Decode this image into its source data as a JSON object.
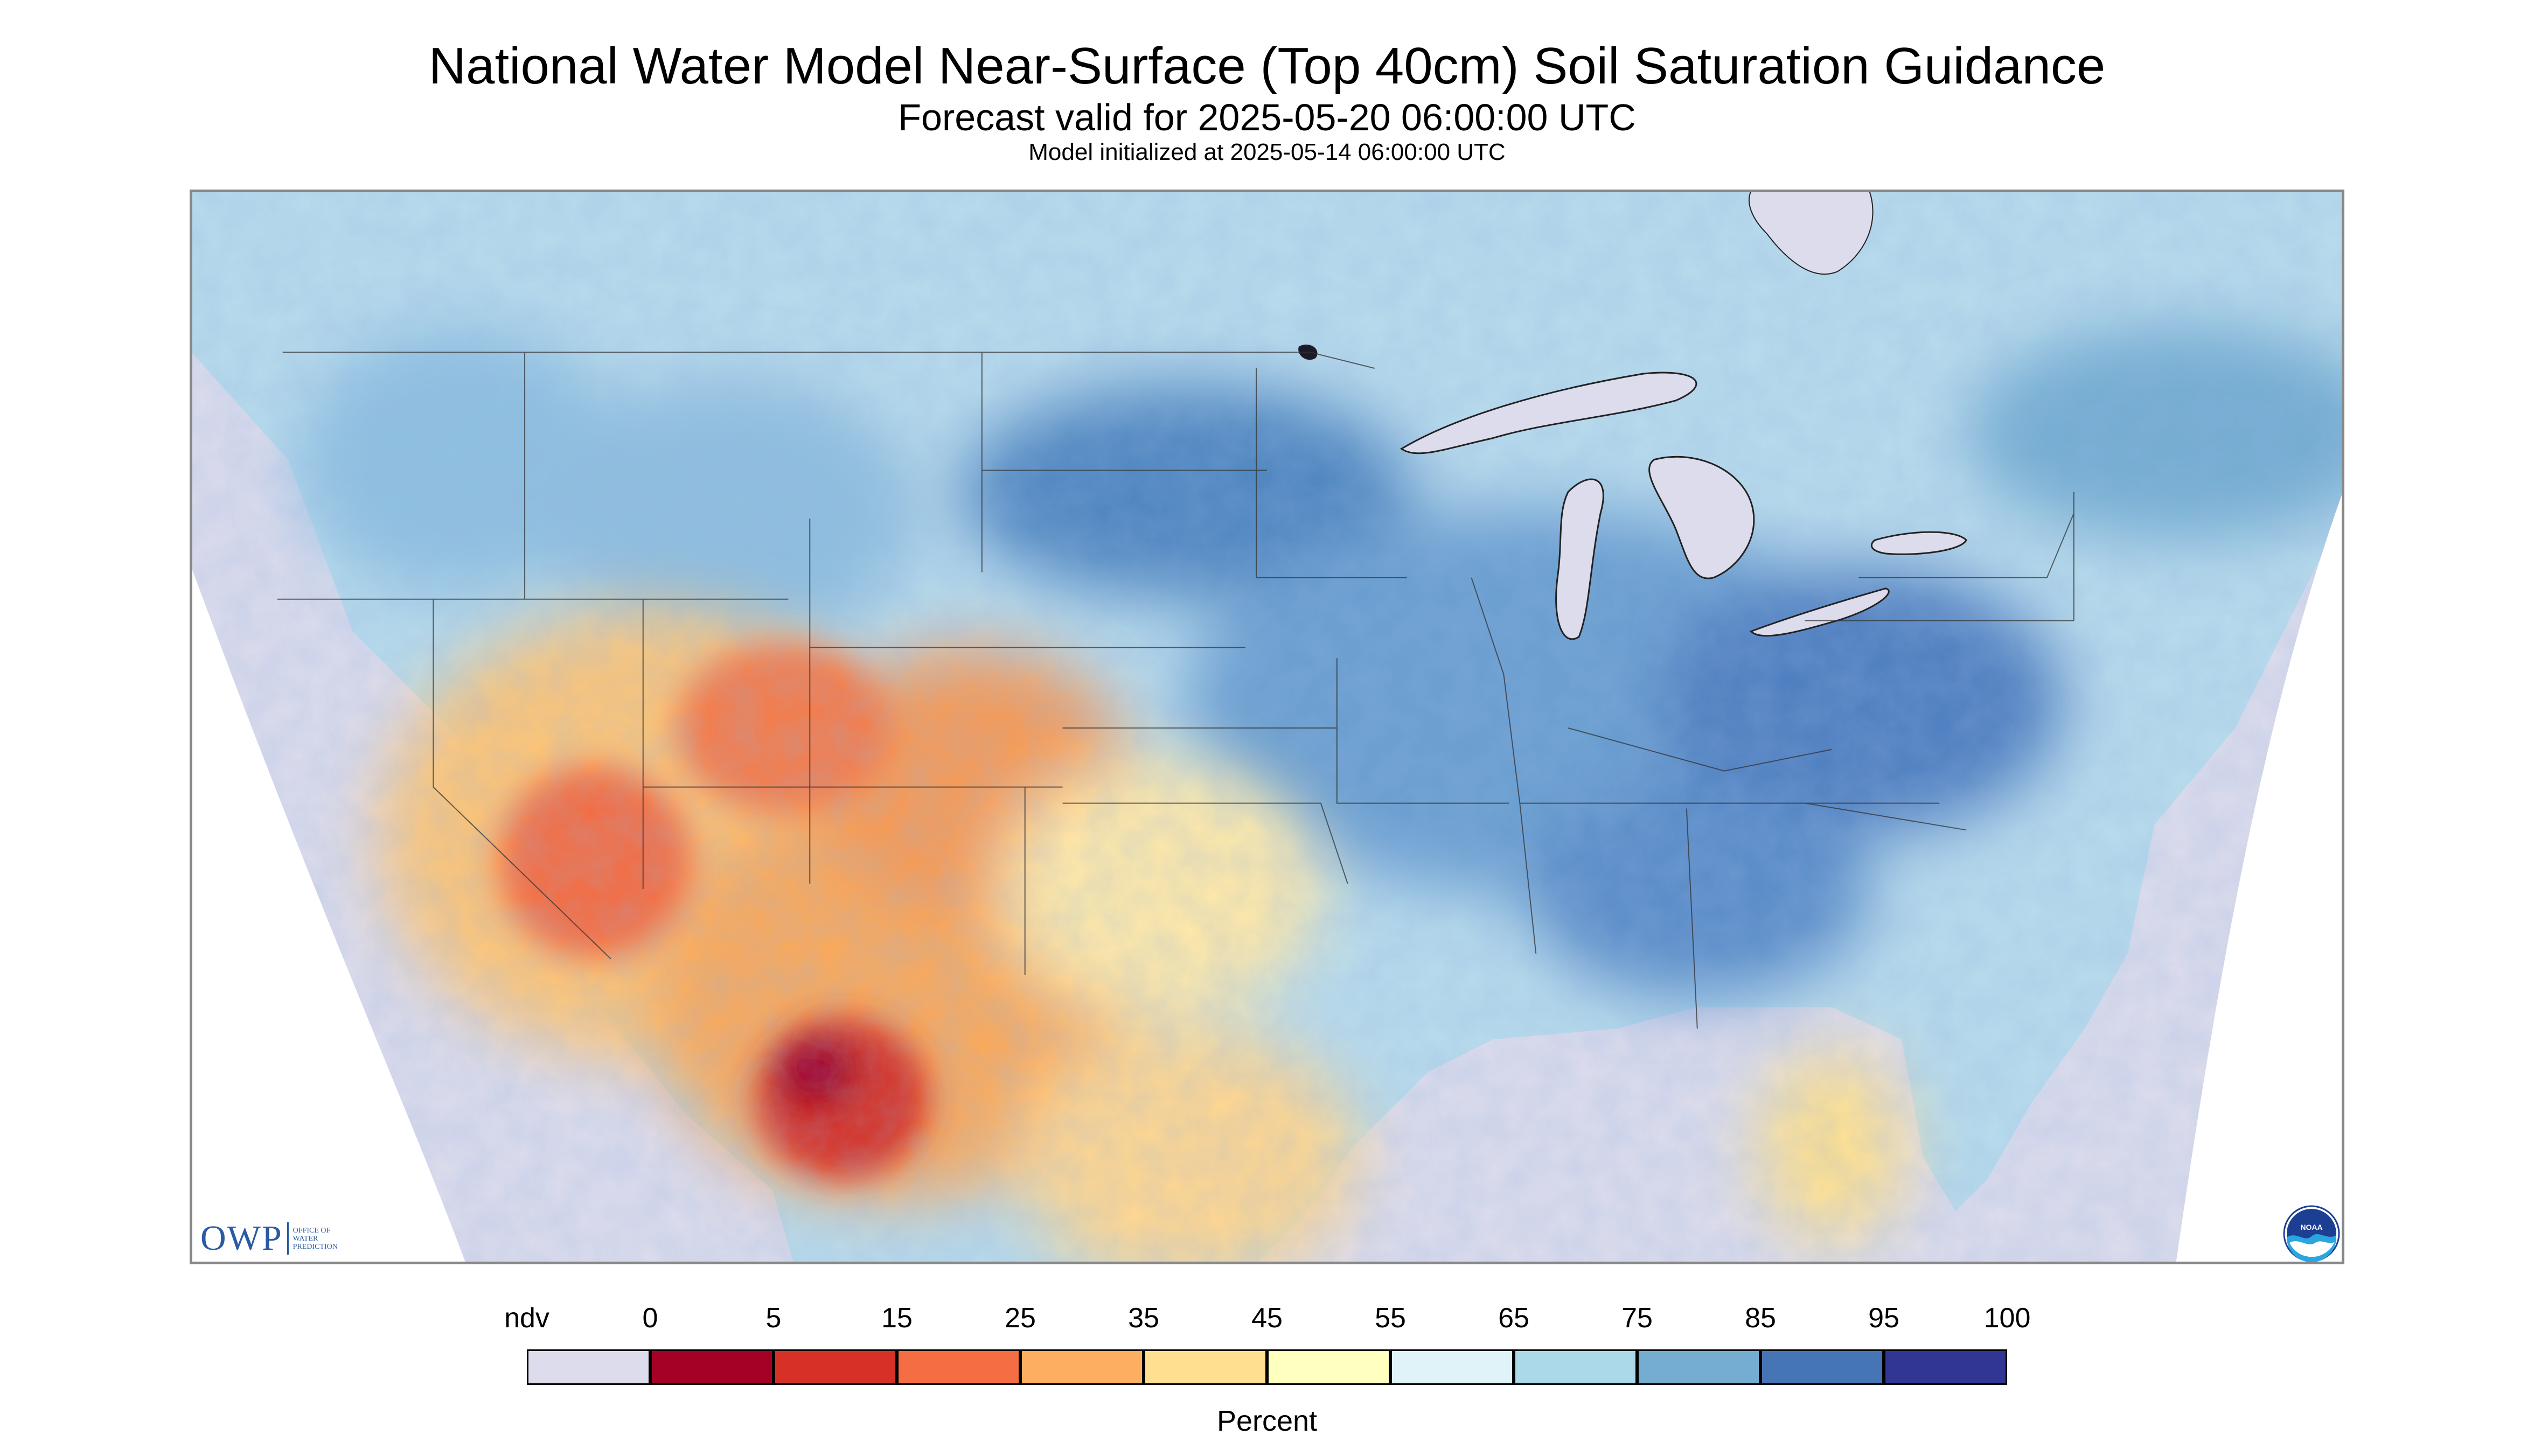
{
  "title": "National Water Model Near-Surface (Top 40cm) Soil Saturation Guidance",
  "subtitle": "Forecast valid for 2025-05-20 06:00:00 UTC",
  "init_line": "Model initialized at 2025-05-14 06:00:00 UTC",
  "logo_left": {
    "name": "OWP",
    "sub": [
      "OFFICE OF",
      "WATER",
      "PREDICTION"
    ]
  },
  "logo_right": {
    "name": "NOAA",
    "icon": "noaa-logo"
  },
  "legend": {
    "title": "Percent",
    "no_data_label": "ndv",
    "no_data_color": "#dcdcec",
    "tick_labels": [
      "0",
      "5",
      "15",
      "25",
      "35",
      "45",
      "55",
      "65",
      "75",
      "85",
      "95",
      "100"
    ],
    "colors": [
      "#a50026",
      "#d73027",
      "#f46d43",
      "#fdae61",
      "#fee090",
      "#ffffbf",
      "#e0f3f8",
      "#abd9e9",
      "#74add1",
      "#4575b4",
      "#313695"
    ]
  },
  "map_colors": {
    "ocean_nodata": "#dcdcec",
    "background": "#ffffff",
    "wet": "#6a9fd0",
    "moist": "#b8dbec",
    "dry": "#fbd88a",
    "very_dry": "#f46d43",
    "driest": "#c1272d"
  }
}
